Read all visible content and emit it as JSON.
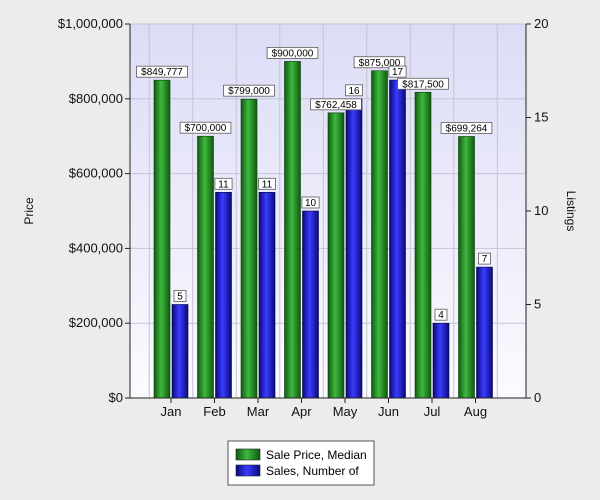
{
  "chart_data": {
    "type": "bar",
    "categories": [
      "Jan",
      "Feb",
      "Mar",
      "Apr",
      "May",
      "Jun",
      "Jul",
      "Aug"
    ],
    "series": [
      {
        "name": "Sale Price, Median",
        "axis": "left",
        "color": "#2e9a2e",
        "values": [
          849777,
          700000,
          799000,
          900000,
          762458,
          875000,
          817500,
          699264
        ],
        "labels": [
          "$849,777",
          "$700,000",
          "$799,000",
          "$900,000",
          "$762,458",
          "$875,000",
          "$817,500",
          "$699,264"
        ]
      },
      {
        "name": "Sales, Number of",
        "axis": "right",
        "color": "#1f1fe0",
        "values": [
          5,
          11,
          11,
          10,
          16,
          17,
          4,
          7
        ],
        "labels": [
          "5",
          "11",
          "11",
          "10",
          "16",
          "17",
          "4",
          "7"
        ]
      }
    ],
    "ylabel": "Price",
    "y2label": "Listings",
    "ylim": [
      0,
      1000000
    ],
    "y2lim": [
      0,
      20
    ],
    "yticks": [
      "$0",
      "$200,000",
      "$400,000",
      "$600,000",
      "$800,000",
      "$1,000,000"
    ],
    "y2ticks": [
      "0",
      "5",
      "10",
      "15",
      "20"
    ],
    "grid": true,
    "legend_position": "bottom-center",
    "plot_background": "#e8e8fa"
  }
}
